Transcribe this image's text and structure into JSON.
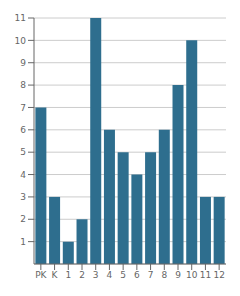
{
  "chart_data": {
    "type": "bar",
    "categories": [
      "PK",
      "K",
      "1",
      "2",
      "3",
      "4",
      "5",
      "6",
      "7",
      "8",
      "9",
      "10",
      "11",
      "12"
    ],
    "values": [
      7,
      3,
      1,
      2,
      11,
      6,
      5,
      4,
      5,
      6,
      8,
      10,
      3,
      3
    ],
    "color": "#2e6e8e",
    "ylim": [
      0,
      11
    ],
    "yticks": [
      1,
      2,
      3,
      4,
      5,
      6,
      7,
      8,
      9,
      10,
      11
    ],
    "grid": true
  }
}
